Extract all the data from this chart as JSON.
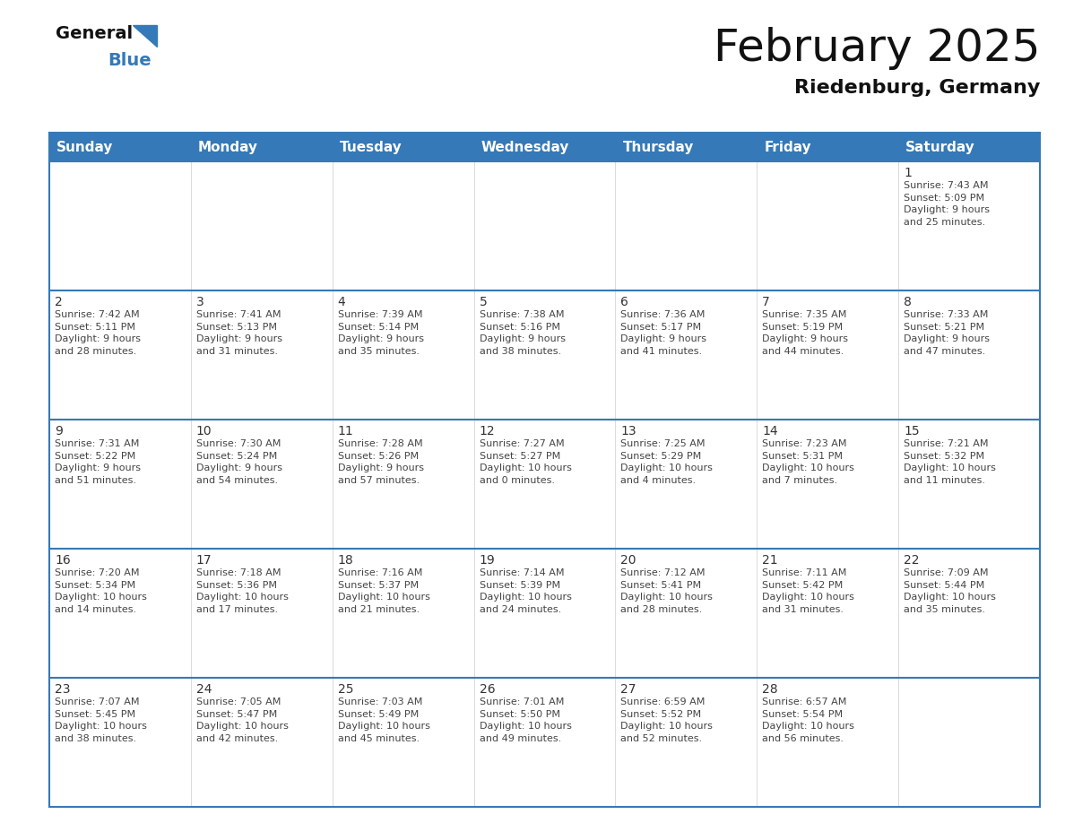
{
  "title": "February 2025",
  "subtitle": "Riedenburg, Germany",
  "header_color": "#3579b8",
  "header_text_color": "#ffffff",
  "day_names": [
    "Sunday",
    "Monday",
    "Tuesday",
    "Wednesday",
    "Thursday",
    "Friday",
    "Saturday"
  ],
  "cell_bg_odd": "#ffffff",
  "cell_bg_even": "#f0f0f0",
  "border_color": "#3579b8",
  "day_number_color": "#333333",
  "cell_text_color": "#444444",
  "logo_general_color": "#1a1a1a",
  "logo_blue_color": "#3579b8",
  "title_fontsize": 36,
  "subtitle_fontsize": 16,
  "header_fontsize": 11,
  "day_num_fontsize": 10,
  "cell_text_fontsize": 8,
  "weeks": [
    [
      {
        "day": null,
        "info": null
      },
      {
        "day": null,
        "info": null
      },
      {
        "day": null,
        "info": null
      },
      {
        "day": null,
        "info": null
      },
      {
        "day": null,
        "info": null
      },
      {
        "day": null,
        "info": null
      },
      {
        "day": 1,
        "info": "Sunrise: 7:43 AM\nSunset: 5:09 PM\nDaylight: 9 hours\nand 25 minutes."
      }
    ],
    [
      {
        "day": 2,
        "info": "Sunrise: 7:42 AM\nSunset: 5:11 PM\nDaylight: 9 hours\nand 28 minutes."
      },
      {
        "day": 3,
        "info": "Sunrise: 7:41 AM\nSunset: 5:13 PM\nDaylight: 9 hours\nand 31 minutes."
      },
      {
        "day": 4,
        "info": "Sunrise: 7:39 AM\nSunset: 5:14 PM\nDaylight: 9 hours\nand 35 minutes."
      },
      {
        "day": 5,
        "info": "Sunrise: 7:38 AM\nSunset: 5:16 PM\nDaylight: 9 hours\nand 38 minutes."
      },
      {
        "day": 6,
        "info": "Sunrise: 7:36 AM\nSunset: 5:17 PM\nDaylight: 9 hours\nand 41 minutes."
      },
      {
        "day": 7,
        "info": "Sunrise: 7:35 AM\nSunset: 5:19 PM\nDaylight: 9 hours\nand 44 minutes."
      },
      {
        "day": 8,
        "info": "Sunrise: 7:33 AM\nSunset: 5:21 PM\nDaylight: 9 hours\nand 47 minutes."
      }
    ],
    [
      {
        "day": 9,
        "info": "Sunrise: 7:31 AM\nSunset: 5:22 PM\nDaylight: 9 hours\nand 51 minutes."
      },
      {
        "day": 10,
        "info": "Sunrise: 7:30 AM\nSunset: 5:24 PM\nDaylight: 9 hours\nand 54 minutes."
      },
      {
        "day": 11,
        "info": "Sunrise: 7:28 AM\nSunset: 5:26 PM\nDaylight: 9 hours\nand 57 minutes."
      },
      {
        "day": 12,
        "info": "Sunrise: 7:27 AM\nSunset: 5:27 PM\nDaylight: 10 hours\nand 0 minutes."
      },
      {
        "day": 13,
        "info": "Sunrise: 7:25 AM\nSunset: 5:29 PM\nDaylight: 10 hours\nand 4 minutes."
      },
      {
        "day": 14,
        "info": "Sunrise: 7:23 AM\nSunset: 5:31 PM\nDaylight: 10 hours\nand 7 minutes."
      },
      {
        "day": 15,
        "info": "Sunrise: 7:21 AM\nSunset: 5:32 PM\nDaylight: 10 hours\nand 11 minutes."
      }
    ],
    [
      {
        "day": 16,
        "info": "Sunrise: 7:20 AM\nSunset: 5:34 PM\nDaylight: 10 hours\nand 14 minutes."
      },
      {
        "day": 17,
        "info": "Sunrise: 7:18 AM\nSunset: 5:36 PM\nDaylight: 10 hours\nand 17 minutes."
      },
      {
        "day": 18,
        "info": "Sunrise: 7:16 AM\nSunset: 5:37 PM\nDaylight: 10 hours\nand 21 minutes."
      },
      {
        "day": 19,
        "info": "Sunrise: 7:14 AM\nSunset: 5:39 PM\nDaylight: 10 hours\nand 24 minutes."
      },
      {
        "day": 20,
        "info": "Sunrise: 7:12 AM\nSunset: 5:41 PM\nDaylight: 10 hours\nand 28 minutes."
      },
      {
        "day": 21,
        "info": "Sunrise: 7:11 AM\nSunset: 5:42 PM\nDaylight: 10 hours\nand 31 minutes."
      },
      {
        "day": 22,
        "info": "Sunrise: 7:09 AM\nSunset: 5:44 PM\nDaylight: 10 hours\nand 35 minutes."
      }
    ],
    [
      {
        "day": 23,
        "info": "Sunrise: 7:07 AM\nSunset: 5:45 PM\nDaylight: 10 hours\nand 38 minutes."
      },
      {
        "day": 24,
        "info": "Sunrise: 7:05 AM\nSunset: 5:47 PM\nDaylight: 10 hours\nand 42 minutes."
      },
      {
        "day": 25,
        "info": "Sunrise: 7:03 AM\nSunset: 5:49 PM\nDaylight: 10 hours\nand 45 minutes."
      },
      {
        "day": 26,
        "info": "Sunrise: 7:01 AM\nSunset: 5:50 PM\nDaylight: 10 hours\nand 49 minutes."
      },
      {
        "day": 27,
        "info": "Sunrise: 6:59 AM\nSunset: 5:52 PM\nDaylight: 10 hours\nand 52 minutes."
      },
      {
        "day": 28,
        "info": "Sunrise: 6:57 AM\nSunset: 5:54 PM\nDaylight: 10 hours\nand 56 minutes."
      },
      {
        "day": null,
        "info": null
      }
    ]
  ]
}
